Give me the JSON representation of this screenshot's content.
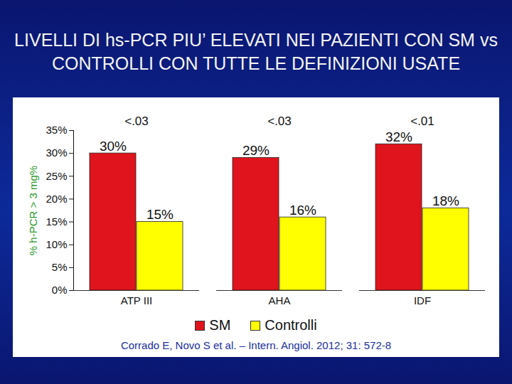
{
  "chart_data": {
    "type": "bar",
    "title": "LIVELLI DI hs-PCR PIU’ ELEVATI NEI PAZIENTI CON SM vs CONTROLLI CON TUTTE LE DEFINIZIONI USATE",
    "y_label": "% h-PCR > 3 mg%",
    "categories": [
      "ATP III",
      "AHA",
      "IDF"
    ],
    "series": [
      {
        "name": "SM",
        "color": "#e0141c",
        "values": [
          30,
          29,
          32
        ],
        "value_labels": [
          "30%",
          "29%",
          "32%"
        ]
      },
      {
        "name": "Controlli",
        "color": "#ffff00",
        "values": [
          15,
          16,
          18
        ],
        "value_labels": [
          "15%",
          "16%",
          "18%"
        ]
      }
    ],
    "ylim": [
      0,
      35
    ],
    "yticks": [
      {
        "value": 0,
        "label": "0%"
      },
      {
        "value": 5,
        "label": "5%"
      },
      {
        "value": 10,
        "label": "10%"
      },
      {
        "value": 15,
        "label": "15%"
      },
      {
        "value": 20,
        "label": "20%"
      },
      {
        "value": 25,
        "label": "25%"
      },
      {
        "value": 30,
        "label": "30%"
      },
      {
        "value": 35,
        "label": "35%"
      }
    ],
    "grid": false,
    "data_labels": true,
    "legend": "bottom",
    "annotations": [
      {
        "category": "ATP III",
        "text": "<.03"
      },
      {
        "category": "AHA",
        "text": "<.03"
      },
      {
        "category": "IDF",
        "text": "<.01"
      }
    ],
    "caption": "Corrado E, Novo S et al. – Intern. Angiol. 2012; 31: 572-8"
  }
}
